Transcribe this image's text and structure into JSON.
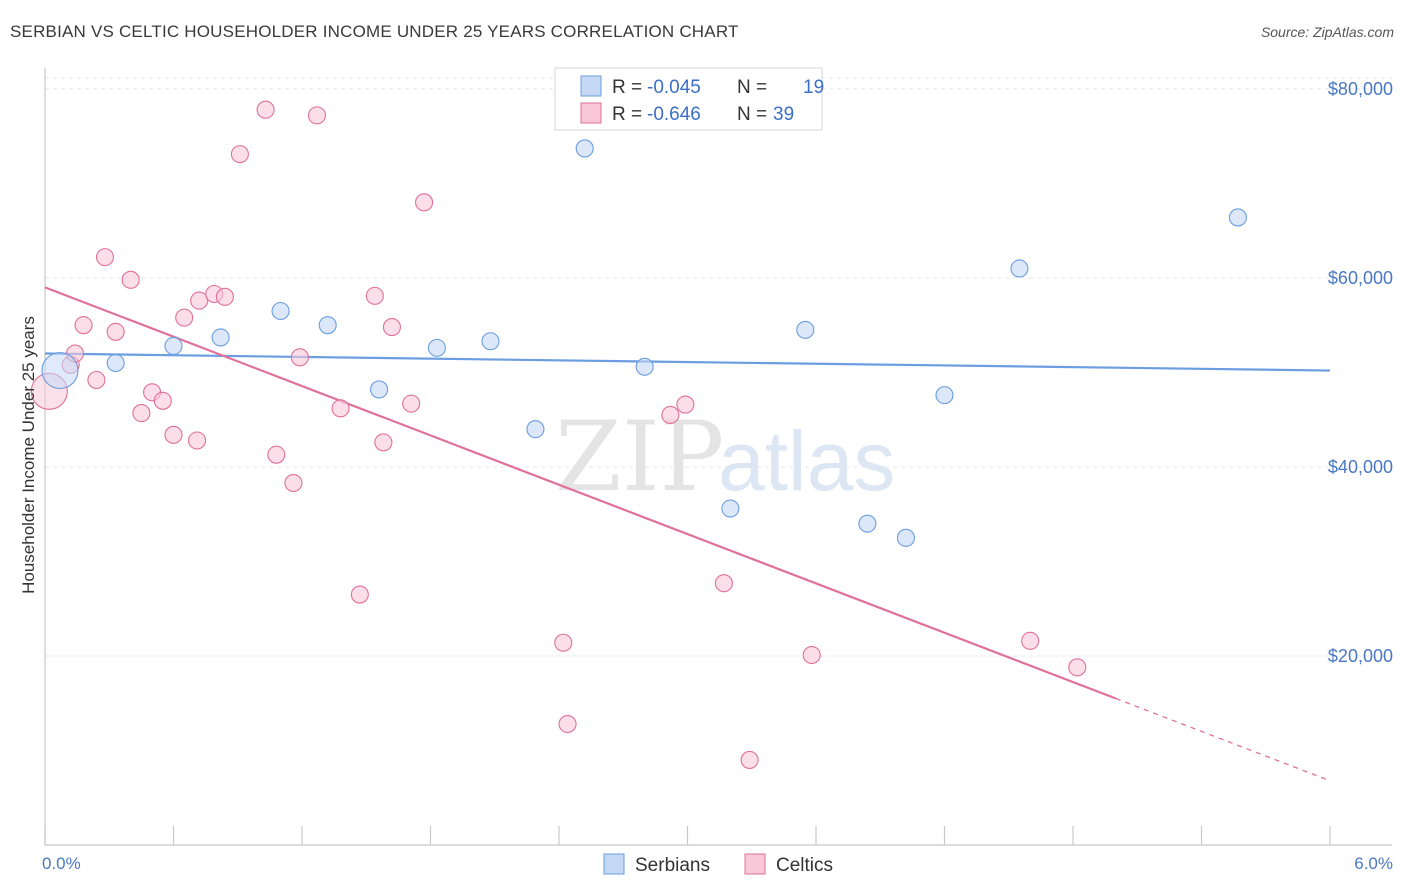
{
  "title": "SERBIAN VS CELTIC HOUSEHOLDER INCOME UNDER 25 YEARS CORRELATION CHART",
  "source": "Source: ZipAtlas.com",
  "watermark": {
    "zip": "ZIP",
    "atlas": "atlas"
  },
  "chart_data": {
    "type": "scatter",
    "xlabel": "",
    "ylabel": "Householder Income Under 25 years",
    "xlim": [
      0.0,
      6.0
    ],
    "ylim": [
      0,
      82000
    ],
    "x_tick_labels": [
      "0.0%",
      "6.0%"
    ],
    "y_ticks": [
      20000,
      40000,
      60000,
      80000
    ],
    "y_tick_labels": [
      "$20,000",
      "$40,000",
      "$60,000",
      "$80,000"
    ],
    "grid": true,
    "legend_position": "top-center",
    "legend": [
      {
        "r_label": "R =",
        "r_value": "-0.045",
        "n_label": "N =",
        "n_value": "19"
      },
      {
        "r_label": "R =",
        "r_value": "-0.646",
        "n_label": "N =",
        "n_value": "39"
      }
    ],
    "series": [
      {
        "name": "Serbians",
        "color": "#6b9de0",
        "fill": "#c5d9f5",
        "trend": {
          "x": [
            0.0,
            6.0
          ],
          "y": [
            52000,
            50200
          ]
        },
        "points": [
          {
            "x": 0.07,
            "y": 50200,
            "big": true
          },
          {
            "x": 0.33,
            "y": 51000
          },
          {
            "x": 0.6,
            "y": 52800
          },
          {
            "x": 0.82,
            "y": 53700
          },
          {
            "x": 1.1,
            "y": 56500
          },
          {
            "x": 1.32,
            "y": 55000
          },
          {
            "x": 1.56,
            "y": 48200
          },
          {
            "x": 1.83,
            "y": 52600
          },
          {
            "x": 2.08,
            "y": 53300
          },
          {
            "x": 2.29,
            "y": 44000
          },
          {
            "x": 2.52,
            "y": 73700
          },
          {
            "x": 2.8,
            "y": 50600
          },
          {
            "x": 3.2,
            "y": 35600
          },
          {
            "x": 3.55,
            "y": 54500
          },
          {
            "x": 3.84,
            "y": 34000
          },
          {
            "x": 4.02,
            "y": 32500
          },
          {
            "x": 4.2,
            "y": 47600
          },
          {
            "x": 4.55,
            "y": 61000
          },
          {
            "x": 5.57,
            "y": 66400
          }
        ]
      },
      {
        "name": "Celtics",
        "color": "#e0709a",
        "fill": "#f8c8d8",
        "trend": {
          "x": [
            0.0,
            5.0
          ],
          "y": [
            59000,
            15500
          ]
        },
        "trend_dashed": {
          "x": [
            5.0,
            6.0
          ],
          "y": [
            15500,
            6800
          ]
        },
        "points": [
          {
            "x": 0.02,
            "y": 48000,
            "big": true
          },
          {
            "x": 0.12,
            "y": 50800
          },
          {
            "x": 0.14,
            "y": 52000
          },
          {
            "x": 0.18,
            "y": 55000
          },
          {
            "x": 0.24,
            "y": 49200
          },
          {
            "x": 0.28,
            "y": 62200
          },
          {
            "x": 0.33,
            "y": 54300
          },
          {
            "x": 0.4,
            "y": 59800
          },
          {
            "x": 0.45,
            "y": 45700
          },
          {
            "x": 0.5,
            "y": 47900
          },
          {
            "x": 0.55,
            "y": 47000
          },
          {
            "x": 0.6,
            "y": 43400
          },
          {
            "x": 0.65,
            "y": 55800
          },
          {
            "x": 0.71,
            "y": 42800
          },
          {
            "x": 0.72,
            "y": 57600
          },
          {
            "x": 0.79,
            "y": 58300
          },
          {
            "x": 0.84,
            "y": 58000
          },
          {
            "x": 0.91,
            "y": 73100
          },
          {
            "x": 1.03,
            "y": 77800
          },
          {
            "x": 1.08,
            "y": 41300
          },
          {
            "x": 1.16,
            "y": 38300
          },
          {
            "x": 1.19,
            "y": 51600
          },
          {
            "x": 1.27,
            "y": 77200
          },
          {
            "x": 1.38,
            "y": 46200
          },
          {
            "x": 1.47,
            "y": 26500
          },
          {
            "x": 1.54,
            "y": 58100
          },
          {
            "x": 1.58,
            "y": 42600
          },
          {
            "x": 1.62,
            "y": 54800
          },
          {
            "x": 1.71,
            "y": 46700
          },
          {
            "x": 1.77,
            "y": 68000
          },
          {
            "x": 2.42,
            "y": 21400
          },
          {
            "x": 2.44,
            "y": 12800
          },
          {
            "x": 2.92,
            "y": 45500
          },
          {
            "x": 2.99,
            "y": 46600
          },
          {
            "x": 3.17,
            "y": 27700
          },
          {
            "x": 3.29,
            "y": 9000
          },
          {
            "x": 3.58,
            "y": 20100
          },
          {
            "x": 4.6,
            "y": 21600
          },
          {
            "x": 4.82,
            "y": 18800
          }
        ]
      }
    ]
  }
}
